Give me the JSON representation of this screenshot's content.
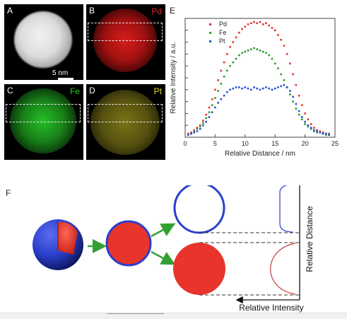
{
  "panels": [
    {
      "label": "A",
      "element": "",
      "color": "#ffffff"
    },
    {
      "label": "B",
      "element": "Pd",
      "color": "#e02020"
    },
    {
      "label": "C",
      "element": "Fe",
      "color": "#22cc22"
    },
    {
      "label": "D",
      "element": "Pt",
      "color": "#e8e020"
    }
  ],
  "scale_bar": "5 nm",
  "panel_e_label": "E",
  "panel_f_label": "F",
  "chart_data": {
    "type": "scatter",
    "xlabel": "Relative Distance / nm",
    "ylabel": "Relative Intensity / a.u.",
    "xlim": [
      0,
      25
    ],
    "xticks": [
      "0",
      "5",
      "10",
      "15",
      "20",
      "25"
    ],
    "legend": "top-left",
    "series": [
      {
        "name": "Pd",
        "color": "#e53030",
        "x": [
          0.5,
          1,
          1.5,
          2,
          2.5,
          3,
          3.5,
          4,
          4.5,
          5,
          5.5,
          6,
          6.5,
          7,
          7.5,
          8,
          8.5,
          9,
          9.5,
          10,
          10.5,
          11,
          11.5,
          12,
          12.5,
          13,
          13.5,
          14,
          14.5,
          15,
          15.5,
          16,
          16.5,
          17,
          17.5,
          18,
          18.5,
          19,
          19.5,
          20,
          20.5,
          21,
          21.5,
          22,
          22.5,
          23,
          23.5,
          24
        ],
        "y": [
          0.03,
          0.04,
          0.06,
          0.08,
          0.1,
          0.14,
          0.19,
          0.25,
          0.32,
          0.4,
          0.48,
          0.56,
          0.63,
          0.7,
          0.76,
          0.8,
          0.84,
          0.88,
          0.91,
          0.93,
          0.95,
          0.96,
          0.97,
          0.96,
          0.97,
          0.95,
          0.96,
          0.94,
          0.92,
          0.9,
          0.86,
          0.82,
          0.77,
          0.7,
          0.62,
          0.53,
          0.44,
          0.35,
          0.27,
          0.2,
          0.15,
          0.11,
          0.08,
          0.06,
          0.05,
          0.04,
          0.03,
          0.03
        ]
      },
      {
        "name": "Fe",
        "color": "#2e9a2e",
        "x": [
          0.5,
          1,
          1.5,
          2,
          2.5,
          3,
          3.5,
          4,
          4.5,
          5,
          5.5,
          6,
          6.5,
          7,
          7.5,
          8,
          8.5,
          9,
          9.5,
          10,
          10.5,
          11,
          11.5,
          12,
          12.5,
          13,
          13.5,
          14,
          14.5,
          15,
          15.5,
          16,
          16.5,
          17,
          17.5,
          18,
          18.5,
          19,
          19.5,
          20,
          20.5,
          21,
          21.5,
          22,
          22.5,
          23,
          23.5,
          24
        ],
        "y": [
          0.02,
          0.03,
          0.05,
          0.07,
          0.09,
          0.12,
          0.16,
          0.21,
          0.27,
          0.33,
          0.39,
          0.45,
          0.51,
          0.56,
          0.6,
          0.63,
          0.66,
          0.69,
          0.71,
          0.72,
          0.73,
          0.74,
          0.75,
          0.74,
          0.73,
          0.72,
          0.71,
          0.69,
          0.66,
          0.62,
          0.58,
          0.53,
          0.48,
          0.42,
          0.36,
          0.3,
          0.24,
          0.19,
          0.15,
          0.11,
          0.09,
          0.07,
          0.05,
          0.04,
          0.04,
          0.03,
          0.02,
          0.02
        ]
      },
      {
        "name": "Pt",
        "color": "#2a4fd0",
        "x": [
          0.5,
          1,
          1.5,
          2,
          2.5,
          3,
          3.5,
          4,
          4.5,
          5,
          5.5,
          6,
          6.5,
          7,
          7.5,
          8,
          8.5,
          9,
          9.5,
          10,
          10.5,
          11,
          11.5,
          12,
          12.5,
          13,
          13.5,
          14,
          14.5,
          15,
          15.5,
          16,
          16.5,
          17,
          17.5,
          18,
          18.5,
          19,
          19.5,
          20,
          20.5,
          21,
          21.5,
          22,
          22.5,
          23,
          23.5,
          24
        ],
        "y": [
          0.02,
          0.03,
          0.04,
          0.05,
          0.07,
          0.1,
          0.13,
          0.17,
          0.21,
          0.25,
          0.29,
          0.32,
          0.35,
          0.38,
          0.4,
          0.41,
          0.42,
          0.42,
          0.41,
          0.42,
          0.41,
          0.4,
          0.42,
          0.41,
          0.4,
          0.41,
          0.42,
          0.41,
          0.4,
          0.41,
          0.42,
          0.43,
          0.44,
          0.42,
          0.39,
          0.34,
          0.28,
          0.22,
          0.17,
          0.13,
          0.1,
          0.08,
          0.06,
          0.05,
          0.04,
          0.03,
          0.03,
          0.02
        ]
      }
    ]
  },
  "diagram": {
    "y_axis_label": "Relative Distance",
    "x_axis_label": "Relative Intensity",
    "colors": {
      "core": "#e8342a",
      "shell": "#2a3fcc",
      "arrow": "#33a033"
    }
  }
}
